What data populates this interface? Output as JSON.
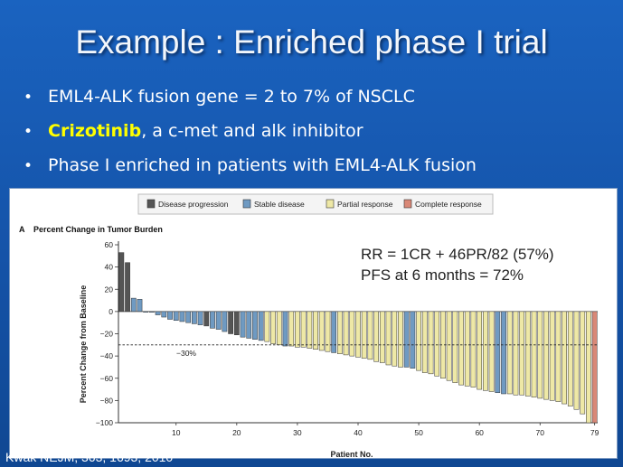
{
  "slide": {
    "title": "Example : Enriched phase I trial",
    "bullets": [
      {
        "pre": "",
        "highlight": "",
        "text": "EML4-ALK fusion gene  = 2 to 7% of NSCLC"
      },
      {
        "pre": "",
        "highlight": "Crizotinib",
        "text": ", a c-met and alk inhibitor"
      },
      {
        "pre": "",
        "highlight": "",
        "text": "Phase I enriched in patients with EML4-ALK fusion"
      }
    ],
    "citation": "Kwak NEJM, 363, 1693, 2010"
  },
  "colors": {
    "progression": "#555555",
    "stable": "#6f9ac2",
    "partial": "#eee8a6",
    "complete": "#d98877"
  },
  "chart_data": {
    "type": "bar",
    "panel_label": "A",
    "title": "Percent Change in Tumor Burden",
    "xlabel": "Patient No.",
    "ylabel": "Percent Change from Baseline",
    "ylim": [
      -100,
      60
    ],
    "yticks": [
      60,
      40,
      20,
      0,
      -20,
      -40,
      -60,
      -80,
      -100
    ],
    "xticks": [
      10,
      20,
      30,
      40,
      50,
      60,
      70,
      79
    ],
    "threshold": {
      "value": -30,
      "label": "−30%"
    },
    "legend": [
      {
        "key": "progression",
        "label": "Disease progression"
      },
      {
        "key": "stable",
        "label": "Stable disease"
      },
      {
        "key": "partial",
        "label": "Partial response"
      },
      {
        "key": "complete",
        "label": "Complete response"
      }
    ],
    "annotations": [
      "RR = 1CR + 46PR/82 (57%)",
      "PFS at 6 months = 72%"
    ],
    "values": [
      53,
      44,
      12,
      11,
      0,
      0,
      -3,
      -5,
      -7,
      -8,
      -9,
      -10,
      -11,
      -12,
      -13,
      -15,
      -16,
      -18,
      -20,
      -21,
      -23,
      -24,
      -25,
      -26,
      -27,
      -29,
      -30,
      -31,
      -31,
      -32,
      -32,
      -33,
      -34,
      -35,
      -36,
      -37,
      -38,
      -39,
      -40,
      -41,
      -42,
      -43,
      -45,
      -46,
      -48,
      -49,
      -50,
      -50,
      -51,
      -53,
      -55,
      -56,
      -58,
      -60,
      -62,
      -64,
      -66,
      -67,
      -68,
      -70,
      -71,
      -72,
      -73,
      -74,
      -74,
      -75,
      -75,
      -76,
      -77,
      -78,
      -79,
      -80,
      -81,
      -83,
      -85,
      -88,
      -92,
      -100,
      -100
    ],
    "categories": [
      "progression",
      "progression",
      "stable",
      "stable",
      "stable",
      "stable",
      "stable",
      "stable",
      "stable",
      "stable",
      "stable",
      "stable",
      "stable",
      "stable",
      "progression",
      "stable",
      "stable",
      "stable",
      "progression",
      "progression",
      "stable",
      "stable",
      "stable",
      "stable",
      "partial",
      "partial",
      "partial",
      "stable",
      "partial",
      "partial",
      "partial",
      "partial",
      "partial",
      "partial",
      "partial",
      "stable",
      "partial",
      "partial",
      "partial",
      "partial",
      "partial",
      "partial",
      "partial",
      "partial",
      "partial",
      "partial",
      "partial",
      "stable",
      "stable",
      "partial",
      "partial",
      "partial",
      "partial",
      "partial",
      "partial",
      "partial",
      "partial",
      "partial",
      "partial",
      "partial",
      "partial",
      "partial",
      "stable",
      "stable",
      "partial",
      "partial",
      "partial",
      "partial",
      "partial",
      "partial",
      "partial",
      "partial",
      "partial",
      "partial",
      "partial",
      "partial",
      "partial",
      "partial",
      "complete"
    ]
  }
}
